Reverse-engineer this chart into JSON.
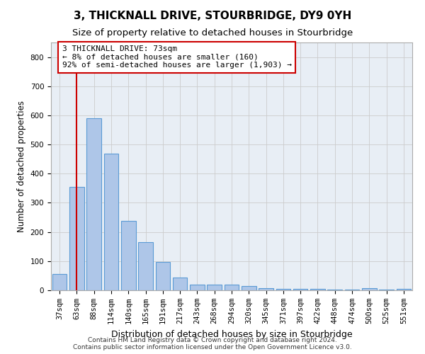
{
  "title": "3, THICKNALL DRIVE, STOURBRIDGE, DY9 0YH",
  "subtitle": "Size of property relative to detached houses in Stourbridge",
  "xlabel": "Distribution of detached houses by size in Stourbridge",
  "ylabel": "Number of detached properties",
  "categories": [
    "37sqm",
    "63sqm",
    "88sqm",
    "114sqm",
    "140sqm",
    "165sqm",
    "191sqm",
    "217sqm",
    "243sqm",
    "268sqm",
    "294sqm",
    "320sqm",
    "345sqm",
    "371sqm",
    "397sqm",
    "422sqm",
    "448sqm",
    "474sqm",
    "500sqm",
    "525sqm",
    "551sqm"
  ],
  "values": [
    55,
    355,
    590,
    468,
    238,
    165,
    97,
    44,
    20,
    19,
    19,
    14,
    7,
    5,
    4,
    4,
    2,
    2,
    8,
    3,
    4
  ],
  "bar_color": "#aec6e8",
  "bar_edge_color": "#5b9bd5",
  "vline_x": 1,
  "vline_color": "#cc0000",
  "annotation_text": "3 THICKNALL DRIVE: 73sqm\n← 8% of detached houses are smaller (160)\n92% of semi-detached houses are larger (1,903) →",
  "annotation_box_color": "#ffffff",
  "annotation_box_edge": "#cc0000",
  "ylim": [
    0,
    850
  ],
  "yticks": [
    0,
    100,
    200,
    300,
    400,
    500,
    600,
    700,
    800
  ],
  "grid_color": "#cccccc",
  "bg_color": "#e8eef5",
  "footer1": "Contains HM Land Registry data © Crown copyright and database right 2024.",
  "footer2": "Contains public sector information licensed under the Open Government Licence v3.0.",
  "title_fontsize": 11,
  "subtitle_fontsize": 9.5,
  "xlabel_fontsize": 9,
  "ylabel_fontsize": 8.5,
  "tick_fontsize": 7.5,
  "annotation_fontsize": 8,
  "footer_fontsize": 6.5
}
